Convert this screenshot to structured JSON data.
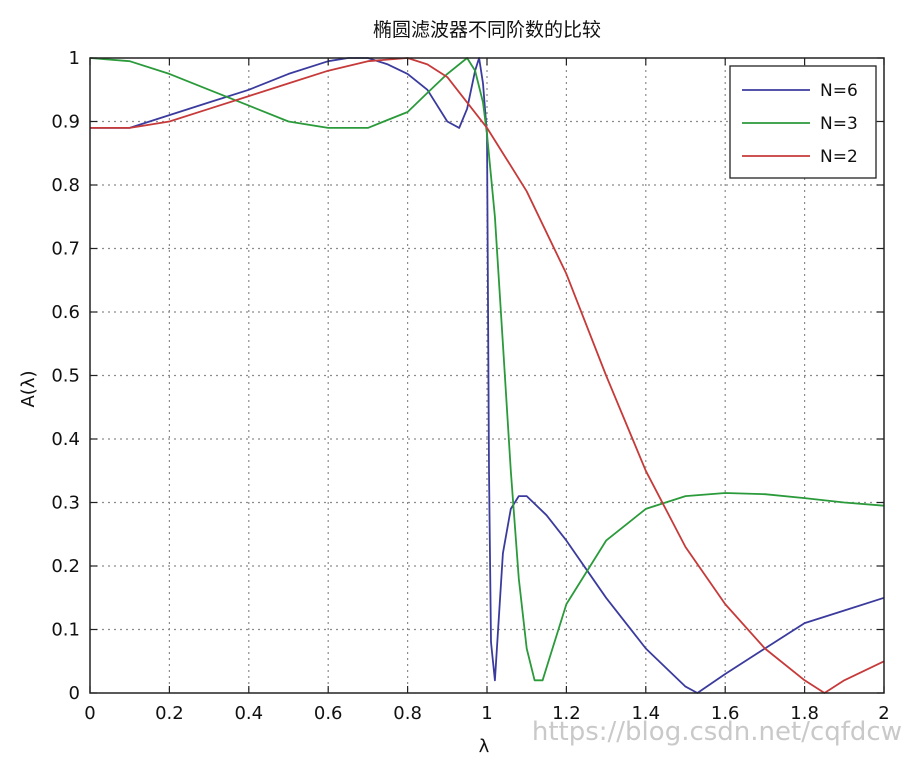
{
  "chart_data": {
    "type": "line",
    "title": "椭圆滤波器不同阶数的比较",
    "xlabel": "λ",
    "ylabel": "A(λ)",
    "xlim": [
      0,
      2
    ],
    "ylim": [
      0,
      1
    ],
    "xticks": [
      0,
      0.2,
      0.4,
      0.6,
      0.8,
      1,
      1.2,
      1.4,
      1.6,
      1.8,
      2
    ],
    "xtick_labels": [
      "0",
      "0.2",
      "0.4",
      "0.6",
      "0.8",
      "1",
      "1.2",
      "1.4",
      "1.6",
      "1.8",
      "2"
    ],
    "yticks": [
      0,
      0.1,
      0.2,
      0.3,
      0.4,
      0.5,
      0.6,
      0.7,
      0.8,
      0.9,
      1
    ],
    "ytick_labels": [
      "0",
      "0.1",
      "0.2",
      "0.3",
      "0.4",
      "0.5",
      "0.6",
      "0.7",
      "0.8",
      "0.9",
      "1"
    ],
    "grid": true,
    "legend_position": "top-right",
    "series": [
      {
        "name": "N=6",
        "color": "#3b3b9e",
        "x": [
          0,
          0.1,
          0.2,
          0.3,
          0.4,
          0.5,
          0.6,
          0.65,
          0.7,
          0.75,
          0.8,
          0.85,
          0.9,
          0.93,
          0.95,
          0.97,
          0.98,
          0.99,
          1.0,
          1.005,
          1.01,
          1.02,
          1.03,
          1.04,
          1.06,
          1.08,
          1.1,
          1.15,
          1.2,
          1.3,
          1.4,
          1.5,
          1.53,
          1.6,
          1.7,
          1.8,
          1.9,
          2.0
        ],
        "y": [
          0.89,
          0.89,
          0.91,
          0.93,
          0.95,
          0.975,
          0.995,
          1.0,
          1.0,
          0.99,
          0.975,
          0.95,
          0.9,
          0.89,
          0.92,
          0.98,
          1.0,
          0.96,
          0.88,
          0.35,
          0.08,
          0.02,
          0.12,
          0.22,
          0.29,
          0.31,
          0.31,
          0.28,
          0.24,
          0.15,
          0.07,
          0.01,
          0.0,
          0.03,
          0.07,
          0.11,
          0.13,
          0.15
        ]
      },
      {
        "name": "N=3",
        "color": "#2a9a3a",
        "x": [
          0,
          0.1,
          0.2,
          0.3,
          0.4,
          0.5,
          0.6,
          0.7,
          0.8,
          0.85,
          0.9,
          0.95,
          0.97,
          0.99,
          1.0,
          1.02,
          1.04,
          1.06,
          1.08,
          1.1,
          1.12,
          1.14,
          1.16,
          1.2,
          1.3,
          1.4,
          1.5,
          1.6,
          1.7,
          1.8,
          1.9,
          2.0
        ],
        "y": [
          1.0,
          0.995,
          0.975,
          0.95,
          0.925,
          0.9,
          0.89,
          0.89,
          0.915,
          0.945,
          0.975,
          1.0,
          0.98,
          0.93,
          0.88,
          0.75,
          0.55,
          0.35,
          0.18,
          0.07,
          0.02,
          0.02,
          0.06,
          0.14,
          0.24,
          0.29,
          0.31,
          0.315,
          0.313,
          0.307,
          0.3,
          0.295
        ]
      },
      {
        "name": "N=2",
        "color": "#c63a3a",
        "x": [
          0,
          0.1,
          0.2,
          0.3,
          0.4,
          0.5,
          0.6,
          0.7,
          0.8,
          0.85,
          0.9,
          0.95,
          1.0,
          1.05,
          1.1,
          1.2,
          1.3,
          1.4,
          1.5,
          1.6,
          1.7,
          1.8,
          1.85,
          1.9,
          2.0
        ],
        "y": [
          0.89,
          0.89,
          0.9,
          0.92,
          0.94,
          0.96,
          0.98,
          0.995,
          1.0,
          0.99,
          0.97,
          0.93,
          0.89,
          0.84,
          0.79,
          0.66,
          0.5,
          0.35,
          0.23,
          0.14,
          0.07,
          0.02,
          0.0,
          0.02,
          0.05
        ]
      }
    ]
  },
  "watermark": "https://blog.csdn.net/cqfdcw"
}
